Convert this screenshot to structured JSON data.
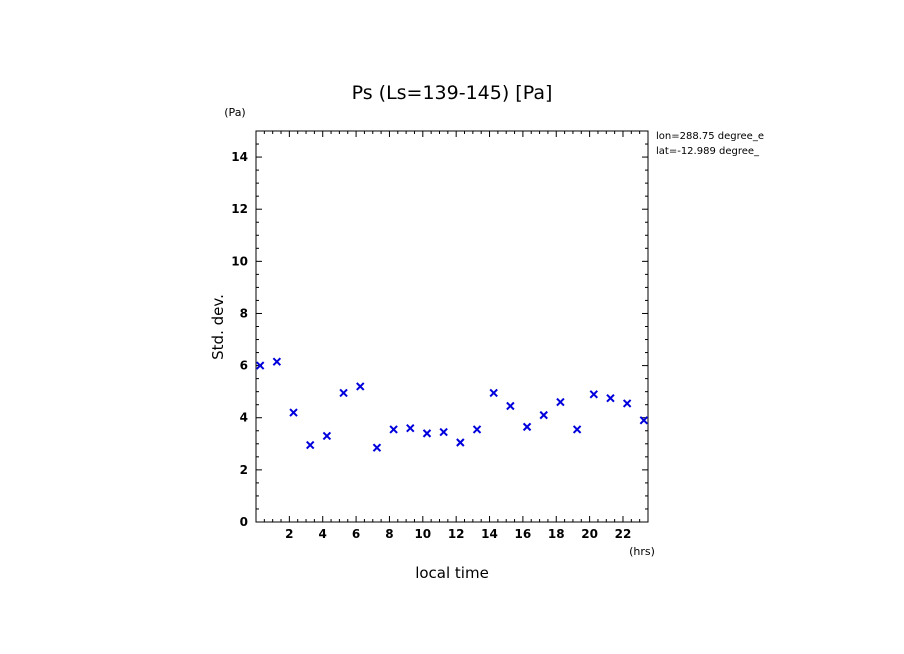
{
  "chart_data": {
    "type": "scatter",
    "title": "Ps (Ls=139-145) [Pa]",
    "ylabel": "Std. dev.",
    "xlabel": "local time",
    "y_unit": "(Pa)",
    "x_unit": "(hrs)",
    "annotations": [
      "lon=288.75 degree_e",
      "lat=-12.989 degree_"
    ],
    "xlim": [
      0,
      23.5
    ],
    "ylim": [
      0,
      15
    ],
    "x_ticks": [
      2,
      4,
      6,
      8,
      10,
      12,
      14,
      16,
      18,
      20,
      22
    ],
    "y_ticks": [
      0,
      2,
      4,
      6,
      8,
      10,
      12,
      14
    ],
    "marker": "x",
    "marker_color": "#0000dd",
    "grid": false,
    "series": [
      {
        "x": [
          0.25,
          1.25,
          2.25,
          3.25,
          4.25,
          5.25,
          6.25,
          7.25,
          8.25,
          9.25,
          10.25,
          11.25,
          12.25,
          13.25,
          14.25,
          15.25,
          16.25,
          17.25,
          18.25,
          19.25,
          20.25,
          21.25,
          22.25,
          23.25
        ],
        "y": [
          6.0,
          6.15,
          4.2,
          2.95,
          3.3,
          4.95,
          5.2,
          2.85,
          3.55,
          3.6,
          3.4,
          3.45,
          3.05,
          3.55,
          4.95,
          4.45,
          3.65,
          4.1,
          4.6,
          3.55,
          4.9,
          4.75,
          4.55,
          3.9
        ]
      }
    ]
  }
}
